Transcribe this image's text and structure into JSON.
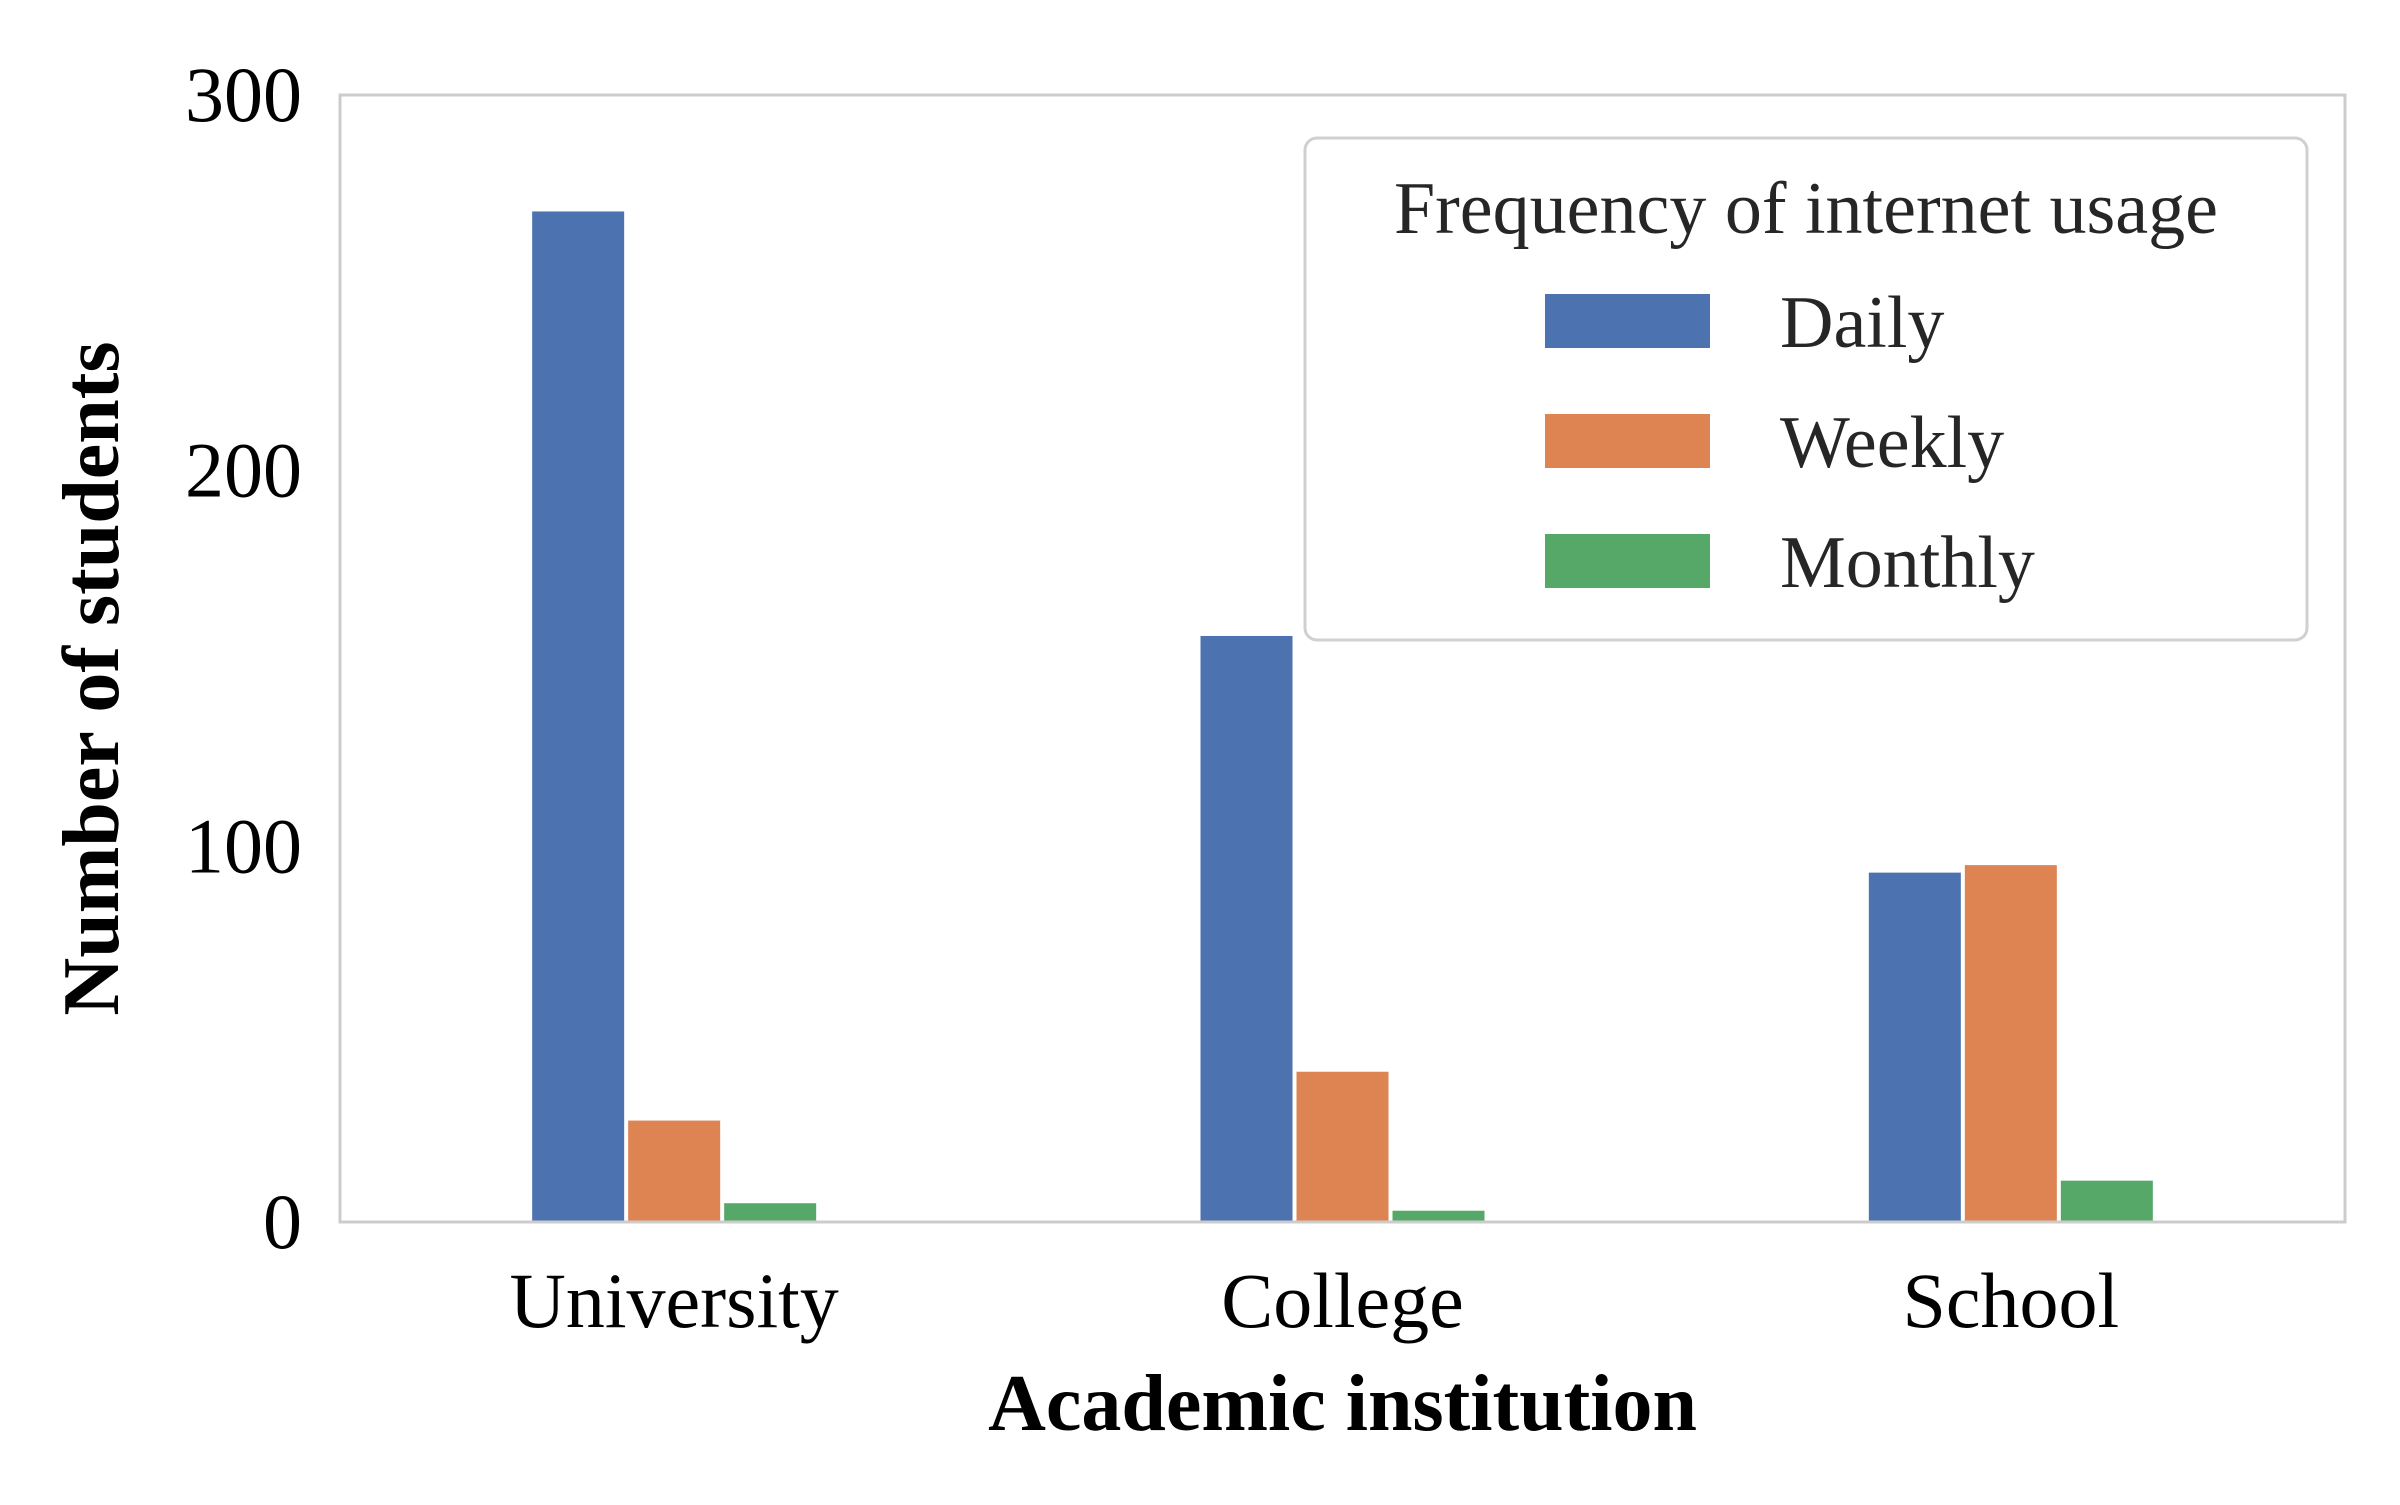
{
  "chart_data": {
    "type": "bar",
    "categories": [
      "University",
      "College",
      "School"
    ],
    "series": [
      {
        "name": "Daily",
        "color": "#4c72b0",
        "values": [
          269,
          156,
          93
        ]
      },
      {
        "name": "Weekly",
        "color": "#dd8452",
        "values": [
          27,
          40,
          95
        ]
      },
      {
        "name": "Monthly",
        "color": "#55a868",
        "values": [
          5,
          3,
          11
        ]
      }
    ],
    "title": "",
    "xlabel": "Academic institution",
    "ylabel": "Number of students",
    "ylim": [
      0,
      300
    ],
    "yticks": [
      0,
      100,
      200,
      300
    ],
    "grid": false,
    "legend": {
      "title": "Frequency of internet usage",
      "placement": "top-right"
    },
    "colors": {
      "axis_frame": "#cccccc",
      "legend_border": "#d0d0d0"
    }
  }
}
